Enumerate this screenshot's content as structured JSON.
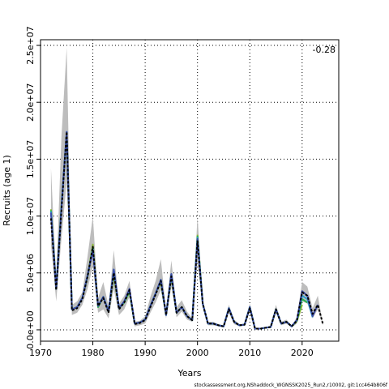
{
  "chart_data": {
    "type": "line",
    "xlabel": "Years",
    "ylabel": "Recruits (age 1)",
    "xlim": [
      1970,
      2027
    ],
    "ylim": [
      -1000000,
      25500000
    ],
    "x_ticks": [
      1970,
      1980,
      1990,
      2000,
      2010,
      2020
    ],
    "y_ticks": [
      0,
      5000000,
      10000000,
      15000000,
      20000000,
      25000000
    ],
    "y_tick_labels": [
      "0.0e+00",
      "5.0e+06",
      "1.0e+07",
      "1.5e+07",
      "2.0e+07",
      "2.5e+07"
    ],
    "grid": true,
    "annotation": "-0.28",
    "footnote": "stockassessment.org,NShaddock_WGNSSK2025_Run2,r10002, git:1cc464b806f",
    "years": [
      1972,
      1973,
      1974,
      1975,
      1976,
      1977,
      1978,
      1979,
      1980,
      1981,
      1982,
      1983,
      1984,
      1985,
      1986,
      1987,
      1988,
      1989,
      1990,
      1991,
      1992,
      1993,
      1994,
      1995,
      1996,
      1997,
      1998,
      1999,
      2000,
      2001,
      2002,
      2003,
      2004,
      2005,
      2006,
      2007,
      2008,
      2009,
      2010,
      2011,
      2012,
      2013,
      2014,
      2015,
      2016,
      2017,
      2018,
      2019,
      2020,
      2021,
      2022,
      2023,
      2024
    ],
    "ci_lower": [
      7500000,
      2500000,
      8000000,
      13000000,
      1300000,
      1500000,
      2200000,
      3600000,
      5600000,
      1500000,
      1800000,
      1000000,
      3600000,
      1300000,
      1800000,
      2900000,
      300000,
      400000,
      550000,
      1500000,
      2400000,
      3500000,
      1000000,
      3800000,
      1100000,
      1600000,
      900000,
      700000,
      6000000,
      2000000,
      400000,
      400000,
      300000,
      200000,
      1500000,
      500000,
      300000,
      350000,
      1600000,
      50000,
      50000,
      120000,
      150000,
      1500000,
      400000,
      550000,
      200000,
      550000,
      2500000,
      2300000,
      1000000,
      1800000,
      400000
    ],
    "ci_upper": [
      14200000,
      4500000,
      17000000,
      24800000,
      2200000,
      2500000,
      3300000,
      6500000,
      10000000,
      2800000,
      4200000,
      2100000,
      7000000,
      2300000,
      3000000,
      4300000,
      700000,
      800000,
      1200000,
      2900000,
      4300000,
      6200000,
      1700000,
      6100000,
      2000000,
      2600000,
      1600000,
      1000000,
      10000000,
      2600000,
      700000,
      700000,
      500000,
      400000,
      2200000,
      900000,
      500000,
      550000,
      2300000,
      150000,
      150000,
      250000,
      350000,
      2200000,
      700000,
      900000,
      400000,
      1100000,
      4200000,
      3800000,
      1900000,
      3000000,
      500000
    ],
    "series": [
      {
        "name": "",
        "color": "#000000",
        "values": [
          9800000,
          3500000,
          10500000,
          17400000,
          1700000,
          1900000,
          2700000,
          4700000,
          7300000,
          2100000,
          2800000,
          1500000,
          5000000,
          1800000,
          2400000,
          3500000,
          500000,
          600000,
          850000,
          2000000,
          3100000,
          4300000,
          1300000,
          4700000,
          1500000,
          2000000,
          1200000,
          850000,
          7800000,
          2300000,
          550000,
          550000,
          400000,
          300000,
          1800000,
          700000,
          400000,
          450000,
          1900000,
          100000,
          100000,
          180000,
          250000,
          1800000,
          550000,
          700000,
          300000,
          800000,
          3300000,
          3000000,
          1400000,
          2200000,
          450000
        ]
      },
      {
        "name": "",
        "color": "#3b4ba8",
        "values": [
          10300000,
          3600000,
          10700000,
          17400000,
          1800000,
          2000000,
          2800000,
          4800000,
          7000000,
          2100000,
          2900000,
          1600000,
          5300000,
          1900000,
          2500000,
          3600000,
          550000,
          650000,
          900000,
          2100000,
          3200000,
          4400000,
          1300000,
          4900000,
          1500000,
          2000000,
          1200000,
          850000,
          8000000,
          2300000,
          550000,
          550000,
          400000,
          300000,
          1900000,
          700000,
          400000,
          450000,
          2000000,
          100000,
          100000,
          180000,
          250000,
          1800000,
          550000,
          700000,
          300000,
          850000,
          3400000,
          3000000,
          1200000,
          2200000,
          null
        ]
      },
      {
        "name": "",
        "color": "#2c9fd0",
        "values": [
          10400000,
          3600000,
          10800000,
          17400000,
          1800000,
          2000000,
          2800000,
          4800000,
          7100000,
          2100000,
          2900000,
          1600000,
          5300000,
          1900000,
          2500000,
          3500000,
          550000,
          650000,
          900000,
          2100000,
          3200000,
          4400000,
          1300000,
          4900000,
          1500000,
          2000000,
          1200000,
          850000,
          8100000,
          2300000,
          550000,
          550000,
          400000,
          300000,
          1900000,
          700000,
          400000,
          450000,
          2000000,
          100000,
          100000,
          180000,
          250000,
          1800000,
          550000,
          700000,
          300000,
          850000,
          3000000,
          2700000,
          1100000,
          null,
          null
        ]
      },
      {
        "name": "",
        "color": "#2ab04a",
        "values": [
          10500000,
          3600000,
          10800000,
          17300000,
          1800000,
          2000000,
          2800000,
          4700000,
          7200000,
          2000000,
          2900000,
          1600000,
          5100000,
          1900000,
          2400000,
          3400000,
          550000,
          650000,
          900000,
          2100000,
          3200000,
          4300000,
          1300000,
          4800000,
          1500000,
          2000000,
          1200000,
          850000,
          8200000,
          2300000,
          550000,
          550000,
          400000,
          300000,
          1900000,
          700000,
          400000,
          450000,
          2000000,
          100000,
          100000,
          180000,
          250000,
          1800000,
          550000,
          700000,
          300000,
          800000,
          2700000,
          2400000,
          null,
          null,
          null
        ]
      },
      {
        "name": "",
        "color": "#8db93a",
        "values": [
          10600000,
          3600000,
          10900000,
          17200000,
          1800000,
          2000000,
          2800000,
          4700000,
          7500000,
          2000000,
          2900000,
          1600000,
          4800000,
          1900000,
          2400000,
          3300000,
          550000,
          650000,
          900000,
          2100000,
          3200000,
          4200000,
          1300000,
          4700000,
          1500000,
          2000000,
          1200000,
          850000,
          8300000,
          2300000,
          550000,
          550000,
          400000,
          300000,
          1900000,
          700000,
          400000,
          450000,
          2000000,
          100000,
          100000,
          180000,
          250000,
          1800000,
          550000,
          700000,
          300000,
          750000,
          2200000,
          null,
          null,
          null,
          null
        ]
      }
    ]
  }
}
